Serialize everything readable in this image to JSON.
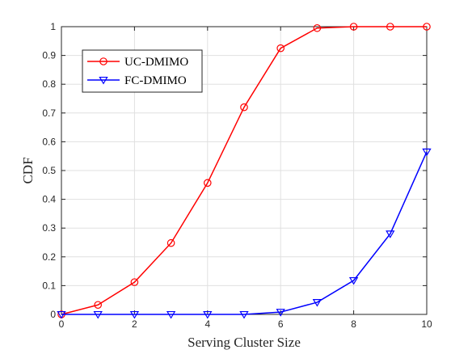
{
  "chart_data": {
    "type": "line",
    "title": "",
    "xlabel": "Serving Cluster Size",
    "ylabel": "CDF",
    "xlim": [
      0,
      10
    ],
    "ylim": [
      0,
      1
    ],
    "xticks": [
      "0",
      "2",
      "4",
      "6",
      "8",
      "10"
    ],
    "yticks": [
      "0",
      "0.1",
      "0.2",
      "0.3",
      "0.4",
      "0.5",
      "0.6",
      "0.7",
      "0.8",
      "0.9",
      "1"
    ],
    "grid": true,
    "legend_position": "top-left",
    "x": [
      0,
      1,
      2,
      3,
      4,
      5,
      6,
      7,
      8,
      9,
      10
    ],
    "series": [
      {
        "name": "UC-DMIMO",
        "color": "#ff0000",
        "marker": "circle",
        "values": [
          0.0,
          0.033,
          0.112,
          0.248,
          0.457,
          0.72,
          0.925,
          0.995,
          1.0,
          1.0,
          1.0
        ]
      },
      {
        "name": "FC-DMIMO",
        "color": "#0000ff",
        "marker": "triangle-down",
        "values": [
          0.0,
          0.0,
          0.0,
          0.0,
          0.0,
          0.0,
          0.008,
          0.042,
          0.118,
          0.28,
          0.565
        ]
      }
    ]
  }
}
